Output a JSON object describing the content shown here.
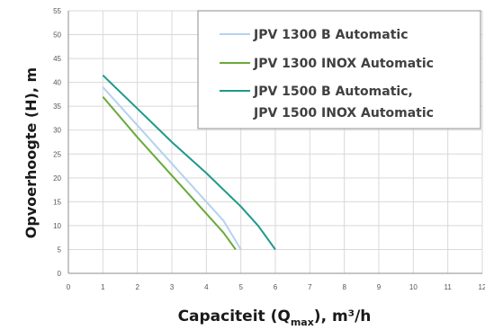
{
  "chart_data": {
    "type": "line",
    "xlabel": "Capaciteit (Q",
    "xlabel_sub": "max",
    "xlabel_tail": "), m³/h",
    "ylabel": "Opvoerhoogte (H), m",
    "xlim": [
      0,
      12
    ],
    "ylim": [
      0,
      55
    ],
    "x_ticks": [
      "0",
      "1",
      "2",
      "3",
      "4",
      "5",
      "6",
      "7",
      "8",
      "9",
      "10",
      "11",
      "12"
    ],
    "y_ticks": [
      "0",
      "5",
      "10",
      "15",
      "20",
      "25",
      "30",
      "35",
      "40",
      "45",
      "50",
      "55"
    ],
    "grid": true,
    "legend_position": "top-right",
    "series": [
      {
        "name": "JPV 1300 B Automatic",
        "color": "#b4d2ee",
        "points": [
          [
            1,
            39
          ],
          [
            2,
            31
          ],
          [
            3,
            23
          ],
          [
            4,
            15
          ],
          [
            4.5,
            11
          ],
          [
            5,
            5
          ]
        ]
      },
      {
        "name": "JPV 1300 INOX Automatic",
        "color": "#6aaa3a",
        "points": [
          [
            1,
            37
          ],
          [
            2,
            28.5
          ],
          [
            3,
            20.5
          ],
          [
            4,
            12.5
          ],
          [
            4.5,
            8.5
          ],
          [
            4.85,
            5
          ]
        ]
      },
      {
        "name": "JPV 1500 B Automatic, JPV 1500 INOX Automatic",
        "legend_lines": [
          "JPV 1500 B Automatic,",
          "JPV 1500 INOX Automatic"
        ],
        "color": "#1f9a8a",
        "points": [
          [
            1,
            41.5
          ],
          [
            2,
            34.5
          ],
          [
            3,
            27.5
          ],
          [
            4,
            21
          ],
          [
            5,
            14
          ],
          [
            5.5,
            10
          ],
          [
            6,
            5
          ]
        ]
      }
    ]
  }
}
